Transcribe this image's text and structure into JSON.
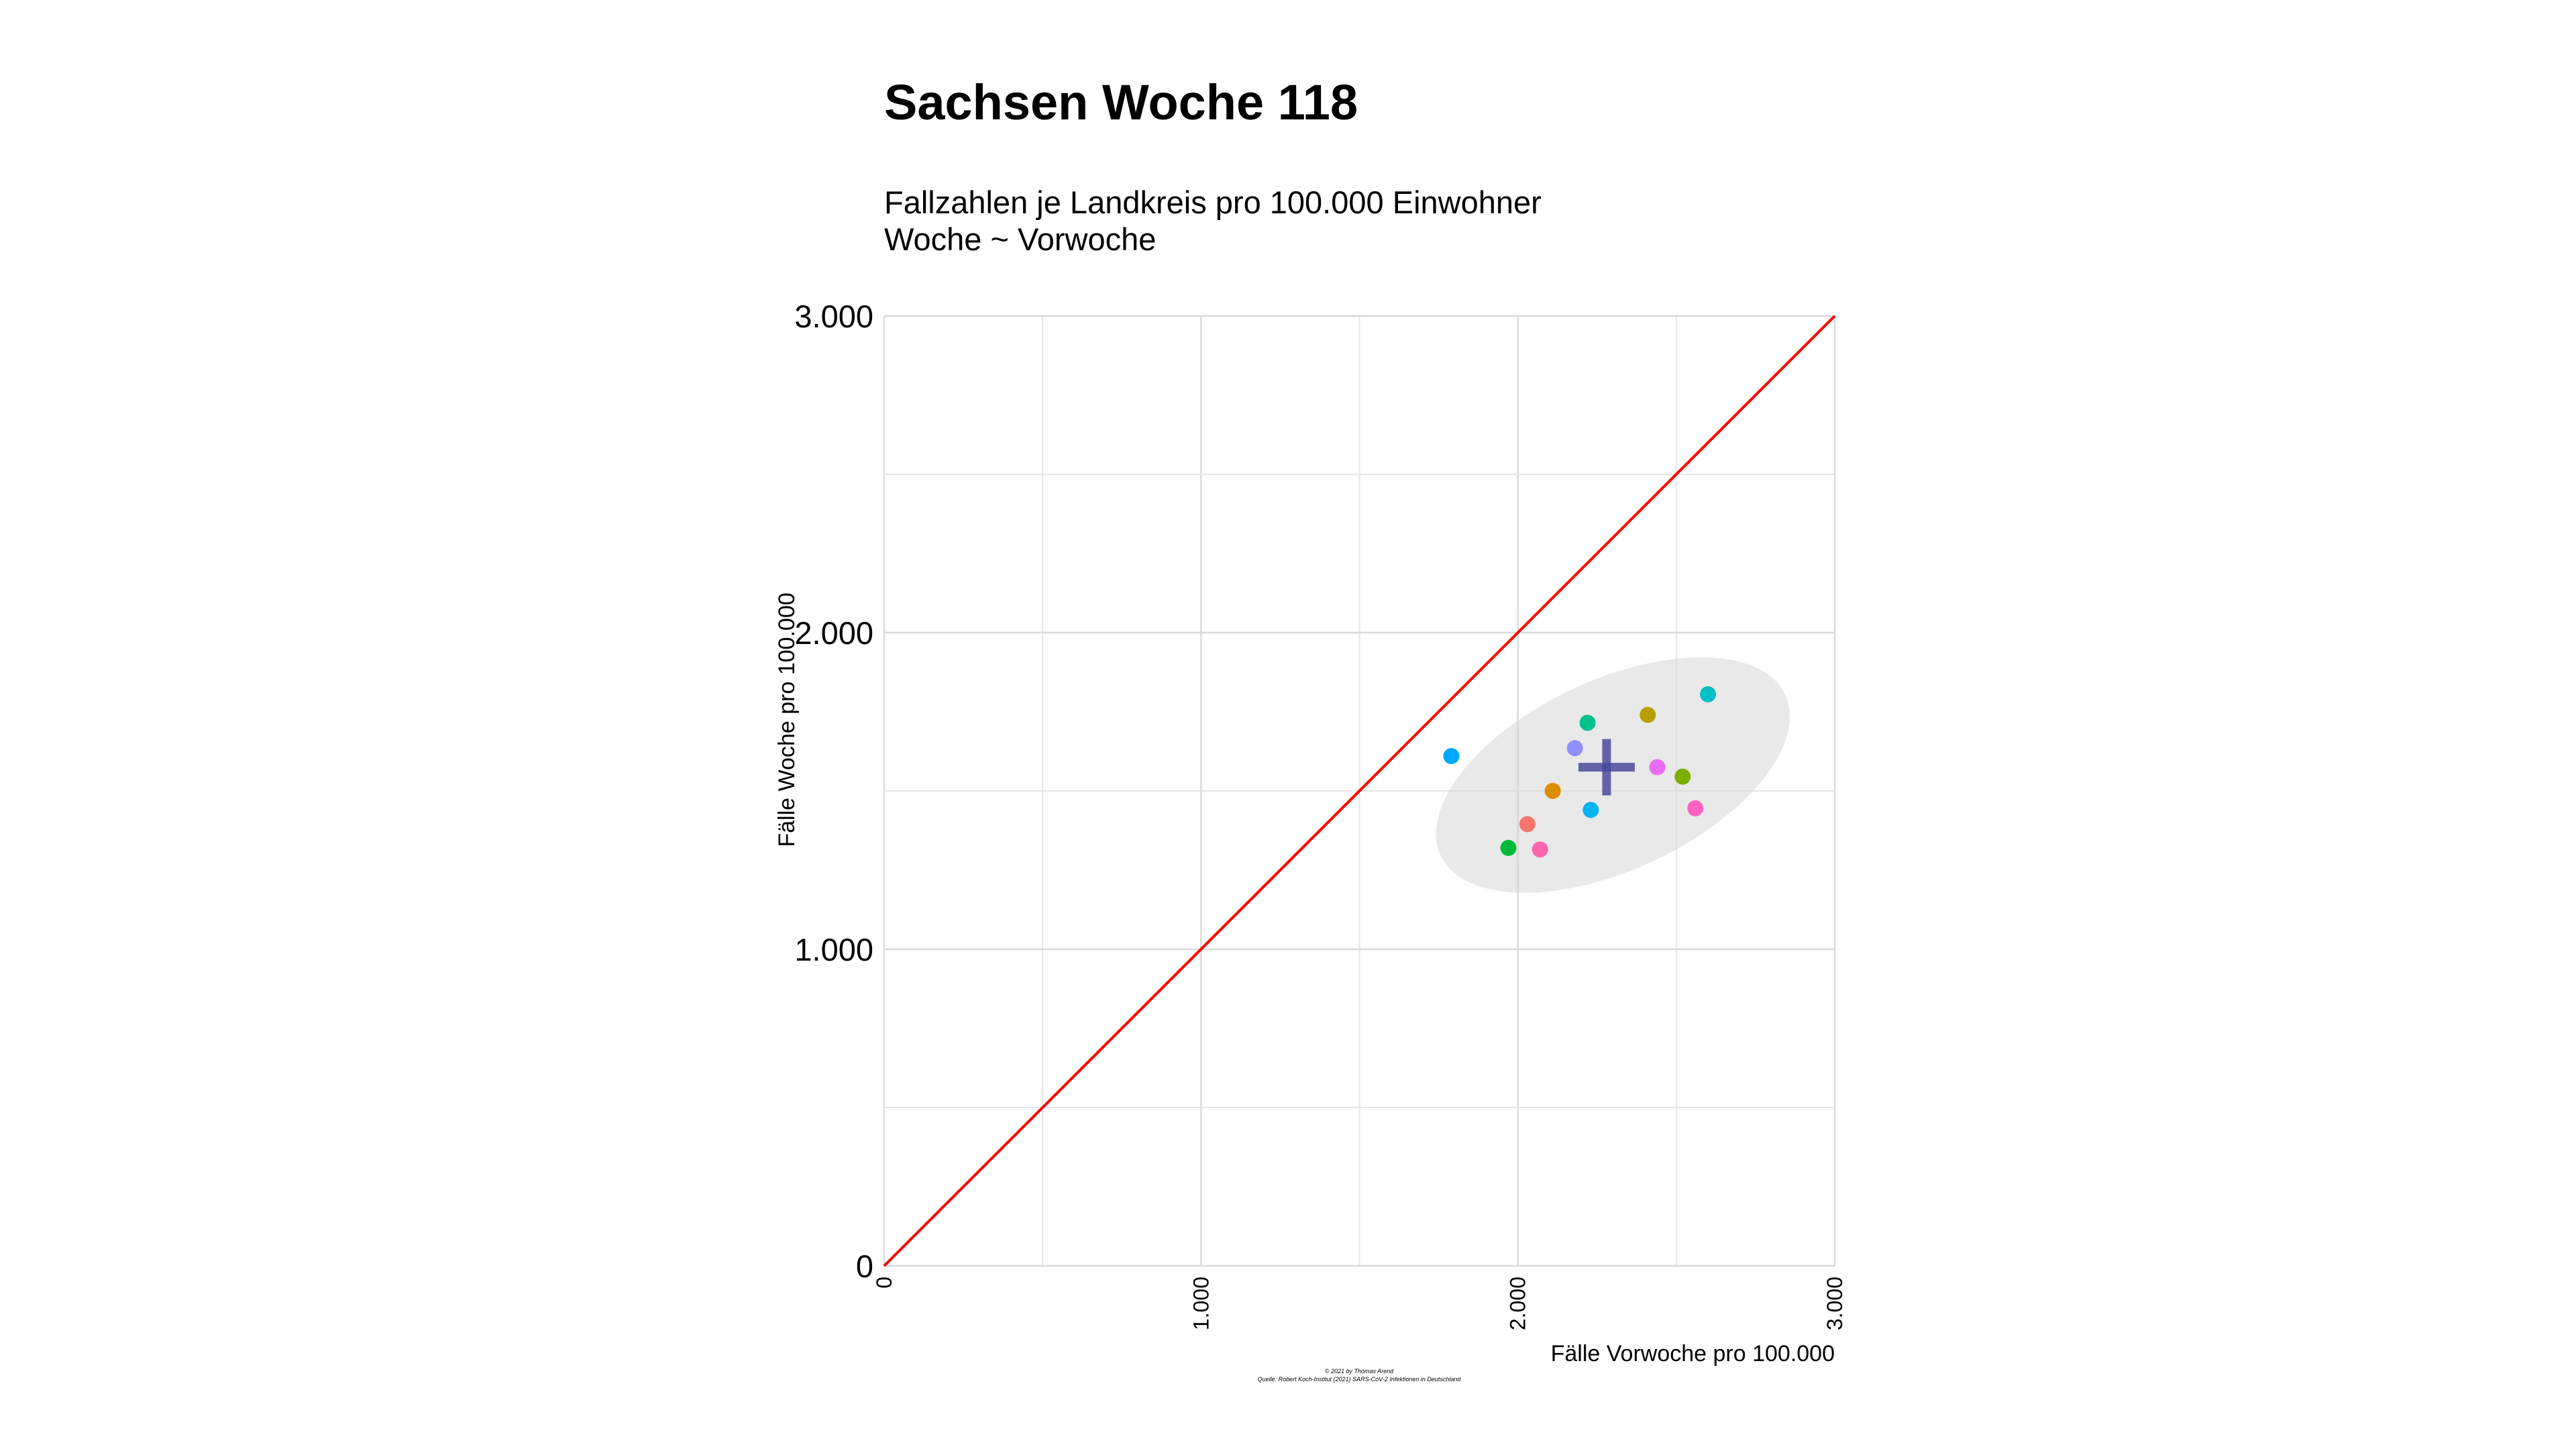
{
  "chart_data": {
    "type": "scatter",
    "title": "Sachsen Woche 118",
    "subtitle_lines": [
      "Fallzahlen je Landkreis pro 100.000 Einwohner",
      "Woche ~ Vorwoche"
    ],
    "xlabel": "Fälle Vorwoche pro 100.000",
    "ylabel": "Fälle Woche pro 100.000",
    "xlim": [
      0,
      3000
    ],
    "ylim": [
      0,
      3000
    ],
    "x_ticks": [
      {
        "value": 0,
        "label": "0"
      },
      {
        "value": 1000,
        "label": "1.000"
      },
      {
        "value": 2000,
        "label": "2.000"
      },
      {
        "value": 3000,
        "label": "3.000"
      }
    ],
    "y_ticks": [
      {
        "value": 0,
        "label": "0"
      },
      {
        "value": 1000,
        "label": "1.000"
      },
      {
        "value": 2000,
        "label": "2.000"
      },
      {
        "value": 3000,
        "label": "3.000"
      }
    ],
    "grid": true,
    "reference_line": {
      "type": "identity",
      "from": [
        0,
        0
      ],
      "to": [
        3000,
        3000
      ],
      "color": "#ff0000"
    },
    "confidence_ellipse": {
      "center": [
        2300,
        1550
      ],
      "semi_axes_data": [
        600,
        300
      ],
      "rotation_deg": 25,
      "color": "#d3d3d3"
    },
    "mean_marker": {
      "x": 2280,
      "y": 1575,
      "color": "#4a4a9e"
    },
    "points": [
      {
        "x": 2030,
        "y": 1395,
        "color": "#f8766d"
      },
      {
        "x": 2110,
        "y": 1500,
        "color": "#de8c00"
      },
      {
        "x": 2410,
        "y": 1740,
        "color": "#b79f00"
      },
      {
        "x": 2520,
        "y": 1545,
        "color": "#7cae00"
      },
      {
        "x": 1970,
        "y": 1320,
        "color": "#00ba38"
      },
      {
        "x": 2220,
        "y": 1715,
        "color": "#00c08b"
      },
      {
        "x": 2600,
        "y": 1805,
        "color": "#00bfc4"
      },
      {
        "x": 2230,
        "y": 1440,
        "color": "#00b4f0"
      },
      {
        "x": 1790,
        "y": 1610,
        "color": "#00a9ff"
      },
      {
        "x": 2180,
        "y": 1635,
        "color": "#8f91ff"
      },
      {
        "x": 2440,
        "y": 1575,
        "color": "#e76bf3"
      },
      {
        "x": 2560,
        "y": 1445,
        "color": "#ff61c3"
      },
      {
        "x": 2070,
        "y": 1315,
        "color": "#ff65ae"
      }
    ]
  },
  "caption": {
    "line1": "© 2021 by Thomas Arend",
    "line2": "Quelle: Robert Koch-Institut (2021) SARS-CoV-2 Infektionen in Deutschland"
  }
}
